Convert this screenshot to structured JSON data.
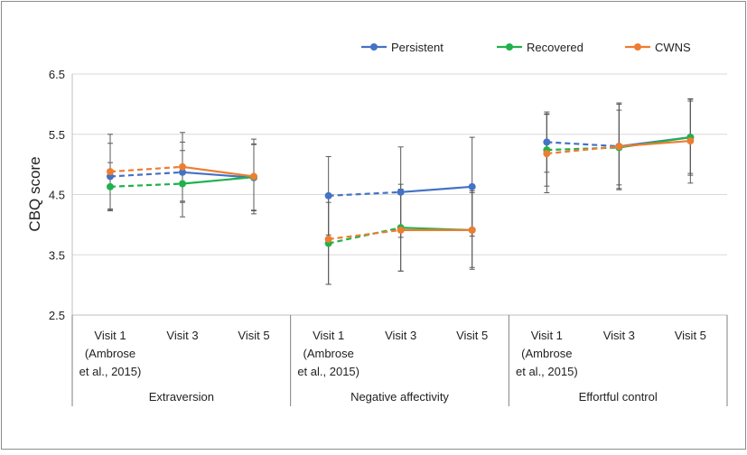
{
  "chart_data": {
    "type": "line",
    "ylabel": "CBQ score",
    "xlabel": "",
    "ylim": [
      2.5,
      6.5
    ],
    "yticks": [
      2.5,
      3.5,
      4.5,
      5.5,
      6.5
    ],
    "ytick_labels": [
      "2.5",
      "3.5",
      "4.5",
      "5.5",
      "6.5"
    ],
    "legend_position": "top-right",
    "legend": [
      "Persistent",
      "Recovered",
      "CWNS"
    ],
    "groups": [
      {
        "label": "Extraversion",
        "categories": [
          [
            "Visit 1",
            "(Ambrose",
            "et al., 2015)"
          ],
          [
            "Visit 3"
          ],
          [
            "Visit 5"
          ]
        ]
      },
      {
        "label": "Negative affectivity",
        "categories": [
          [
            "Visit 1",
            "(Ambrose",
            "et al., 2015)"
          ],
          [
            "Visit 3"
          ],
          [
            "Visit 5"
          ]
        ]
      },
      {
        "label": "Effortful control",
        "categories": [
          [
            "Visit 1",
            "(Ambrose",
            "et al., 2015)"
          ],
          [
            "Visit 3"
          ],
          [
            "Visit 5"
          ]
        ]
      }
    ],
    "line_style_note": "Visit 1 to Visit 3 segments are dashed; Visit 3 to Visit 5 segments are solid",
    "series": [
      {
        "name": "Persistent",
        "color": "#4472C4",
        "values": [
          [
            4.8,
            4.87,
            4.78
          ],
          [
            4.48,
            4.54,
            4.63
          ],
          [
            5.37,
            5.3,
            5.45
          ]
        ],
        "error": [
          [
            0.55,
            0.5,
            0.55
          ],
          [
            0.65,
            0.75,
            0.82
          ],
          [
            0.5,
            0.7,
            0.6
          ]
        ]
      },
      {
        "name": "Recovered",
        "color": "#21B14C",
        "values": [
          [
            4.63,
            4.68,
            4.79
          ],
          [
            3.69,
            3.95,
            3.91
          ],
          [
            5.24,
            5.28,
            5.45
          ]
        ],
        "error": [
          [
            0.4,
            0.55,
            0.55
          ],
          [
            0.68,
            0.72,
            0.65
          ],
          [
            0.6,
            0.62,
            0.63
          ]
        ]
      },
      {
        "name": "CWNS",
        "color": "#ED7D31",
        "values": [
          [
            4.88,
            4.96,
            4.8
          ],
          [
            3.76,
            3.91,
            3.91
          ],
          [
            5.18,
            5.3,
            5.39
          ]
        ],
        "error": [
          [
            0.62,
            0.57,
            0.62
          ],
          [
            0.75,
            0.68,
            0.62
          ],
          [
            0.65,
            0.72,
            0.7
          ]
        ]
      }
    ]
  }
}
